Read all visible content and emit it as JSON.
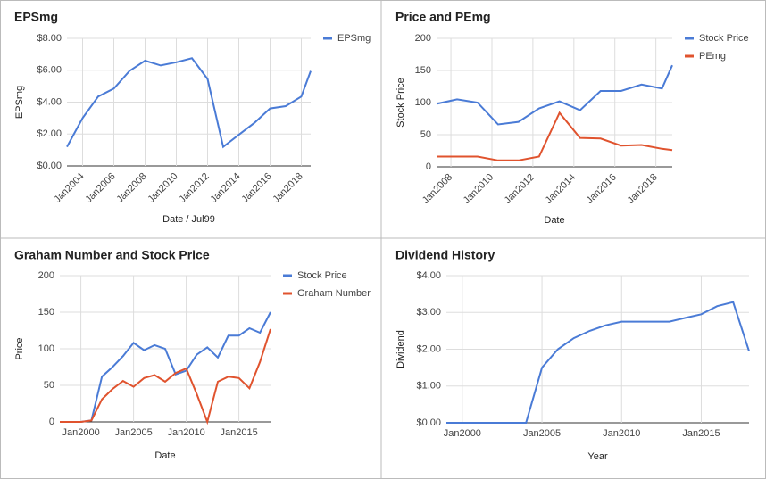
{
  "chart_data": [
    {
      "type": "line",
      "title": "EPSmg",
      "xlabel": "Date / Jul99",
      "ylabel": "EPSmg",
      "legend": "right",
      "x": [
        2003,
        2004,
        2005,
        2006,
        2007,
        2008,
        2009,
        2010,
        2011,
        2012,
        2013,
        2014,
        2015,
        2016,
        2017,
        2018,
        2018.6
      ],
      "series": [
        {
          "name": "EPSmg",
          "color": "#4a7bd6",
          "values": [
            1.2,
            3.0,
            4.35,
            4.85,
            5.95,
            6.6,
            6.3,
            6.5,
            6.75,
            5.45,
            1.2,
            1.95,
            2.7,
            3.6,
            3.75,
            4.35,
            5.95
          ]
        }
      ],
      "xlim": [
        2003,
        2018.6
      ],
      "xticks": [
        {
          "value": 2004,
          "label": "Jan2004"
        },
        {
          "value": 2006,
          "label": "Jan2006"
        },
        {
          "value": 2008,
          "label": "Jan2008"
        },
        {
          "value": 2010,
          "label": "Jan2010"
        },
        {
          "value": 2012,
          "label": "Jan2012"
        },
        {
          "value": 2014,
          "label": "Jan2014"
        },
        {
          "value": 2016,
          "label": "Jan2016"
        },
        {
          "value": 2018,
          "label": "Jan2018"
        }
      ],
      "ylim": [
        0,
        8
      ],
      "yticks": [
        {
          "value": 0,
          "label": "$0.00"
        },
        {
          "value": 2,
          "label": "$2.00"
        },
        {
          "value": 4,
          "label": "$4.00"
        },
        {
          "value": 6,
          "label": "$6.00"
        },
        {
          "value": 8,
          "label": "$8.00"
        }
      ],
      "grid": true
    },
    {
      "type": "line",
      "title": "Price and PEmg",
      "xlabel": "Date",
      "ylabel": "Stock Price",
      "legend": "right",
      "x": [
        2007.3,
        2008.3,
        2009.3,
        2010.3,
        2011.3,
        2012.3,
        2013.3,
        2014.3,
        2015.3,
        2016.3,
        2017.3,
        2018.3,
        2018.8
      ],
      "series": [
        {
          "name": "Stock Price",
          "color": "#4a7bd6",
          "values": [
            98,
            105,
            100,
            66,
            70,
            91,
            102,
            88,
            118,
            118,
            128,
            122,
            158
          ]
        },
        {
          "name": "PEmg",
          "color": "#e0532e",
          "values": [
            16,
            16,
            16,
            10,
            10,
            16,
            84,
            45,
            44,
            33,
            34,
            28,
            26
          ]
        }
      ],
      "xlim": [
        2007.3,
        2018.8
      ],
      "xticks": [
        {
          "value": 2008,
          "label": "Jan2008"
        },
        {
          "value": 2010,
          "label": "Jan2010"
        },
        {
          "value": 2012,
          "label": "Jan2012"
        },
        {
          "value": 2014,
          "label": "Jan2014"
        },
        {
          "value": 2016,
          "label": "Jan2016"
        },
        {
          "value": 2018,
          "label": "Jan2018"
        }
      ],
      "ylim": [
        0,
        200
      ],
      "yticks": [
        0,
        50,
        100,
        150,
        200
      ],
      "grid": true
    },
    {
      "type": "line",
      "title": "Graham Number and Stock Price",
      "xlabel": "Date",
      "ylabel": "Price",
      "legend": "right",
      "x": [
        1998,
        1999,
        2000,
        2001,
        2002,
        2003,
        2004,
        2005,
        2006,
        2007,
        2008,
        2009,
        2010,
        2011,
        2012,
        2013,
        2014,
        2015,
        2016,
        2017,
        2018
      ],
      "series": [
        {
          "name": "Stock Price",
          "color": "#4a7bd6",
          "values": [
            0,
            0,
            0,
            2,
            62,
            75,
            90,
            108,
            98,
            105,
            100,
            65,
            70,
            92,
            102,
            88,
            118,
            118,
            128,
            122,
            150
          ]
        },
        {
          "name": "Graham Number",
          "color": "#e0532e",
          "values": [
            0,
            0,
            0,
            2,
            31,
            45,
            56,
            48,
            60,
            64,
            55,
            67,
            73,
            38,
            0,
            55,
            62,
            60,
            46,
            82,
            127
          ]
        }
      ],
      "xlim": [
        1998,
        2018
      ],
      "xticks": [
        {
          "value": 2000,
          "label": "Jan2000"
        },
        {
          "value": 2005,
          "label": "Jan2005"
        },
        {
          "value": 2010,
          "label": "Jan2010"
        },
        {
          "value": 2015,
          "label": "Jan2015"
        }
      ],
      "ylim": [
        0,
        200
      ],
      "yticks": [
        0,
        50,
        100,
        150,
        200
      ],
      "grid": true
    },
    {
      "type": "line",
      "title": "Dividend History",
      "xlabel": "Year",
      "ylabel": "Dividend",
      "x": [
        1999,
        2000,
        2001,
        2002,
        2003,
        2004,
        2005,
        2006,
        2007,
        2008,
        2009,
        2010,
        2011,
        2012,
        2013,
        2014,
        2015,
        2016,
        2017,
        2018
      ],
      "values": [
        0,
        0,
        0,
        0,
        0,
        0,
        1.5,
        2.0,
        2.3,
        2.5,
        2.65,
        2.75,
        2.75,
        2.75,
        2.75,
        2.85,
        2.95,
        3.17,
        3.28,
        1.95
      ],
      "color": "#4a7bd6",
      "xlim": [
        1999,
        2018
      ],
      "xticks": [
        {
          "value": 2000,
          "label": "Jan2000"
        },
        {
          "value": 2005,
          "label": "Jan2005"
        },
        {
          "value": 2010,
          "label": "Jan2010"
        },
        {
          "value": 2015,
          "label": "Jan2015"
        }
      ],
      "ylim": [
        0,
        4
      ],
      "yticks": [
        {
          "value": 0,
          "label": "$0.00"
        },
        {
          "value": 1,
          "label": "$1.00"
        },
        {
          "value": 2,
          "label": "$2.00"
        },
        {
          "value": 3,
          "label": "$3.00"
        },
        {
          "value": 4,
          "label": "$4.00"
        }
      ],
      "grid": true
    }
  ]
}
